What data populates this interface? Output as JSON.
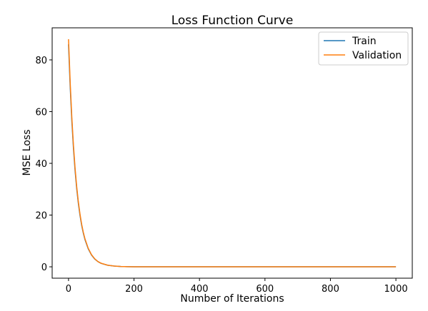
{
  "chart_data": {
    "type": "line",
    "title": "Loss Function Curve",
    "xlabel": "Number of Iterations",
    "ylabel": "MSE Loss",
    "xlim": [
      -50,
      1050
    ],
    "ylim": [
      -4.4,
      92.4
    ],
    "xticks": [
      0,
      200,
      400,
      600,
      800,
      1000
    ],
    "yticks": [
      0,
      20,
      40,
      60,
      80
    ],
    "grid": false,
    "legend_position": "top-right",
    "series": [
      {
        "name": "Train",
        "color": "#1f77b4",
        "x": [
          0,
          5,
          10,
          15,
          20,
          25,
          30,
          35,
          40,
          45,
          50,
          60,
          70,
          80,
          90,
          100,
          120,
          140,
          160,
          180,
          200,
          250,
          300,
          400,
          500,
          600,
          700,
          800,
          900,
          1000
        ],
        "y": [
          86.0,
          69.8,
          56.6,
          45.9,
          37.2,
          30.2,
          24.5,
          19.9,
          16.1,
          13.1,
          10.6,
          7.0,
          4.6,
          3.0,
          2.0,
          1.3,
          0.6,
          0.3,
          0.12,
          0.06,
          0.03,
          0.0,
          0.0,
          0.0,
          0.0,
          0.0,
          0.0,
          0.0,
          0.0,
          0.0
        ]
      },
      {
        "name": "Validation",
        "color": "#ff7f0e",
        "x": [
          0,
          5,
          10,
          15,
          20,
          25,
          30,
          35,
          40,
          45,
          50,
          60,
          70,
          80,
          90,
          100,
          120,
          140,
          160,
          180,
          200,
          250,
          300,
          400,
          500,
          600,
          700,
          800,
          900,
          1000
        ],
        "y": [
          88.0,
          71.4,
          57.9,
          47.0,
          38.1,
          30.9,
          25.1,
          20.4,
          16.5,
          13.4,
          10.9,
          7.2,
          4.7,
          3.1,
          2.0,
          1.35,
          0.6,
          0.3,
          0.12,
          0.06,
          0.03,
          0.0,
          0.0,
          0.0,
          0.0,
          0.0,
          0.0,
          0.0,
          0.0,
          0.0
        ]
      }
    ]
  }
}
